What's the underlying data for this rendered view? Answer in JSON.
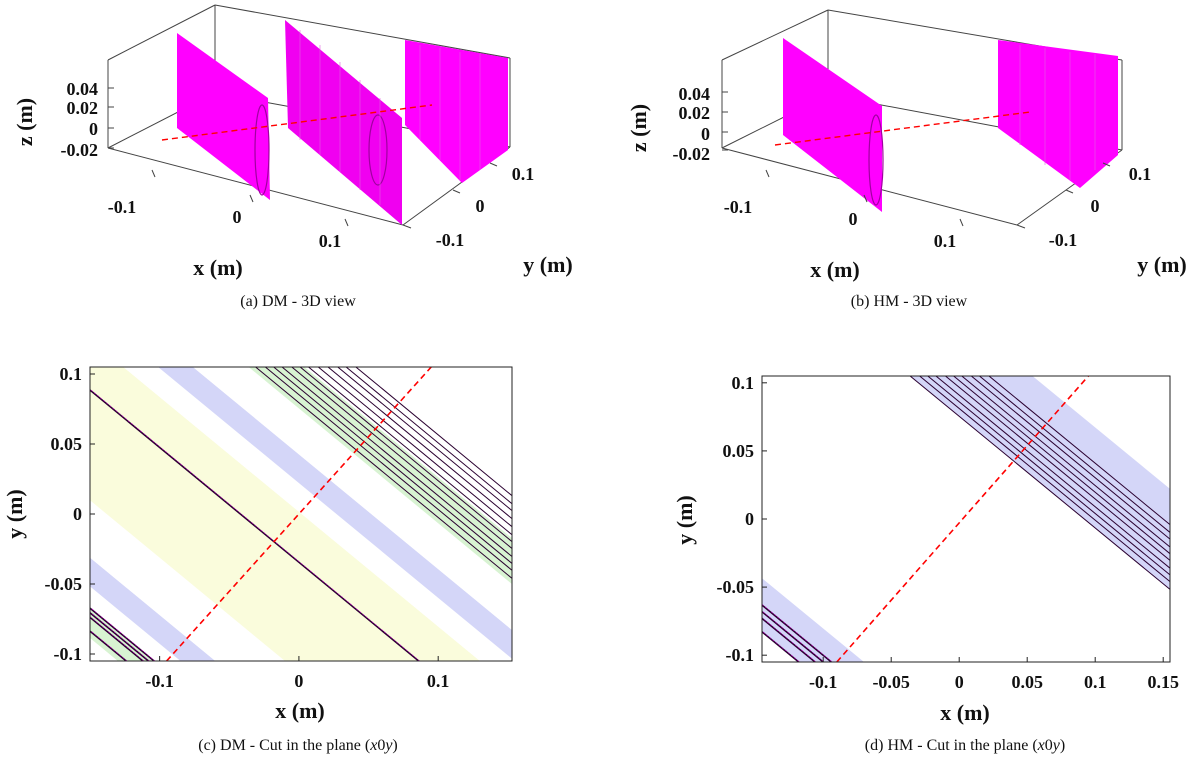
{
  "figure": {
    "panels": [
      {
        "id": "a",
        "caption": "(a)  DM - 3D view",
        "xlabel": "x (m)",
        "ylabel": "y (m)",
        "zlabel": "z (m)",
        "x_ticks": [
          "-0.1",
          "0",
          "0.1"
        ],
        "y_ticks": [
          "-0.1",
          "0",
          "0.1"
        ],
        "z_ticks": [
          "0.04",
          "0.02",
          "0",
          "-0.02"
        ]
      },
      {
        "id": "b",
        "caption": "(b)  HM - 3D view",
        "xlabel": "x (m)",
        "ylabel": "y (m)",
        "zlabel": "z (m)",
        "x_ticks": [
          "-0.1",
          "0",
          "0.1"
        ],
        "y_ticks": [
          "-0.1",
          "0",
          "0.1"
        ],
        "z_ticks": [
          "0.04",
          "0.02",
          "0",
          "-0.02"
        ]
      },
      {
        "id": "c",
        "caption_prefix": "(c) DM - Cut in the plane (",
        "caption_var1": "x",
        "caption_mid": "0",
        "caption_var2": "y",
        "caption_suffix": ")",
        "xlabel": "x (m)",
        "ylabel": "y (m)"
      },
      {
        "id": "d",
        "caption_prefix": "(d) HM - Cut in the plane (",
        "caption_var1": "x",
        "caption_mid": "0",
        "caption_var2": "y",
        "caption_suffix": ")",
        "xlabel": "x (m)",
        "ylabel": "y (m)"
      }
    ]
  },
  "chart_data": [
    {
      "type": "3d-surface",
      "title": "DM - 3D view",
      "surface_color": "#ff00ff",
      "ray_color": "#ff0000",
      "xlim": [
        -0.15,
        0.15
      ],
      "ylim": [
        -0.1,
        0.1
      ],
      "zlim": [
        -0.03,
        0.05
      ],
      "surfaces": [
        "array-1",
        "array-2",
        "array-3"
      ]
    },
    {
      "type": "3d-surface",
      "title": "HM - 3D view",
      "surface_color": "#ff00ff",
      "ray_color": "#ff0000",
      "xlim": [
        -0.15,
        0.15
      ],
      "ylim": [
        -0.1,
        0.1
      ],
      "zlim": [
        -0.03,
        0.05
      ],
      "surfaces": [
        "array-1",
        "array-2"
      ]
    },
    {
      "type": "line",
      "title": "DM - Cut in the plane (x0y)",
      "xlim": [
        -0.15,
        0.153
      ],
      "ylim": [
        -0.105,
        0.105
      ],
      "x_ticks": [
        -0.1,
        0,
        0.1
      ],
      "x_tick_labels": [
        "-0.1",
        "0",
        "0.1"
      ],
      "y_ticks": [
        0.1,
        0.05,
        0,
        -0.05,
        -0.1
      ],
      "y_tick_labels": [
        "0.1",
        "0.05",
        "0",
        "-0.05",
        "-0.1"
      ],
      "bands": [
        {
          "x0": -0.13,
          "width": 0.025,
          "color": "#d8f3d2"
        },
        {
          "x0": -0.105,
          "width": 0.02,
          "color": "#ffffff"
        },
        {
          "x0": -0.085,
          "width": 0.025,
          "color": "#d4d6f8"
        },
        {
          "x0": -0.06,
          "width": 0.05,
          "color": "#ffffff"
        },
        {
          "x0": -0.01,
          "width": 0.14,
          "color": "#fafcdc"
        },
        {
          "x0": 0.13,
          "width": 0.025,
          "color": "#ffffff"
        },
        {
          "x0": 0.155,
          "width": 0.025,
          "color": "#d4d6f8"
        },
        {
          "x0": 0.18,
          "width": 0.04,
          "color": "#ffffff"
        },
        {
          "x0": 0.22,
          "width": 0.04,
          "color": "#d8f3d2"
        }
      ],
      "curves_x0": [
        -0.124,
        -0.112,
        -0.108,
        -0.104,
        0.086
      ],
      "curve_slope": -0.82,
      "cluster_x0": [
        0.225,
        0.232,
        0.238,
        0.244,
        0.251,
        0.257,
        0.263,
        0.27,
        0.277,
        0.284,
        0.29,
        0.297
      ],
      "ray": {
        "x": [
          -0.095,
          0.095
        ],
        "y": [
          -0.105,
          0.105
        ]
      }
    },
    {
      "type": "line",
      "title": "HM - Cut in the plane (x0y)",
      "xlim": [
        -0.145,
        0.155
      ],
      "ylim": [
        -0.105,
        0.105
      ],
      "x_ticks": [
        -0.1,
        -0.05,
        0,
        0.05,
        0.1,
        0.15
      ],
      "x_tick_labels": [
        "-0.1",
        "-0.05",
        "0",
        "0.05",
        "0.1",
        "0.15"
      ],
      "y_ticks": [
        0.1,
        0.05,
        0,
        -0.05,
        -0.1
      ],
      "y_tick_labels": [
        "0.1",
        "0.05",
        "0",
        "-0.05",
        "-0.1"
      ],
      "bands": [
        {
          "x0": -0.118,
          "width": 0.048,
          "color": "#d4d6f8"
        },
        {
          "x0": 0.22,
          "width": 0.09,
          "color": "#d4d6f8"
        }
      ],
      "curves_x0": [
        -0.118,
        -0.106,
        -0.1,
        -0.094
      ],
      "curve_slope": -0.82,
      "cluster_x0": [
        0.22,
        0.227,
        0.233,
        0.239,
        0.246,
        0.252,
        0.258,
        0.265,
        0.271,
        0.278
      ],
      "ray": {
        "x": [
          -0.09,
          0.095
        ],
        "y": [
          -0.105,
          0.105
        ]
      }
    }
  ]
}
